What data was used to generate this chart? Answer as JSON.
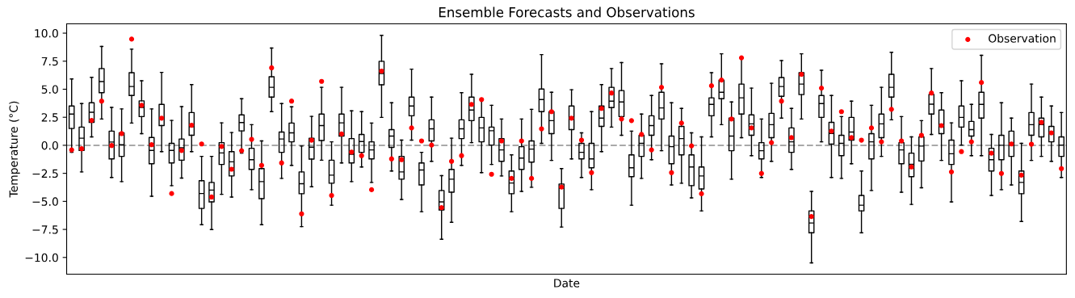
{
  "chart_data": {
    "type": "box",
    "title": "Ensemble Forecasts and Observations",
    "xlabel": "Date",
    "ylabel": "Temperature (°C)",
    "categories": [
      null,
      null,
      null,
      null,
      null,
      null,
      null,
      null,
      null,
      null,
      null,
      null,
      null,
      null,
      null,
      null,
      null,
      null,
      null,
      null,
      null,
      null,
      null,
      null,
      null,
      null,
      null,
      null,
      null,
      null,
      null,
      null,
      null,
      null,
      null,
      null,
      null,
      null,
      null,
      null,
      null,
      null,
      null,
      null,
      null,
      null,
      null,
      null,
      null,
      null,
      null,
      null,
      null,
      null,
      null,
      null,
      null,
      null,
      null,
      null,
      null,
      null,
      null,
      null,
      null,
      null,
      null,
      null,
      null,
      null,
      null,
      null,
      null,
      null,
      null,
      null,
      null,
      null,
      null,
      null,
      null,
      null,
      null,
      null,
      null,
      null,
      null,
      null,
      null,
      null,
      null,
      null,
      null,
      null,
      null,
      null,
      null,
      null,
      null,
      null
    ],
    "boxes": [
      {
        "low": -0.63,
        "q1": 1.5,
        "median": 2.78,
        "q3": 3.5,
        "high": 5.92
      },
      {
        "low": -2.37,
        "q1": -0.46,
        "median": 0.63,
        "q3": 1.62,
        "high": 3.72
      },
      {
        "low": 0.75,
        "q1": 2.05,
        "median": 2.95,
        "q3": 3.79,
        "high": 6.06
      },
      {
        "low": 2.34,
        "q1": 4.69,
        "median": 5.68,
        "q3": 6.84,
        "high": 8.82
      },
      {
        "low": -2.87,
        "q1": -1.21,
        "median": 0.29,
        "q3": 1.26,
        "high": 3.38
      },
      {
        "low": -3.24,
        "q1": -0.99,
        "median": 0.05,
        "q3": 1.11,
        "high": 3.24
      },
      {
        "low": 1.98,
        "q1": 4.44,
        "median": 5.24,
        "q3": 6.47,
        "high": 8.57
      },
      {
        "low": 1.04,
        "q1": 2.56,
        "median": 3.38,
        "q3": 3.96,
        "high": 5.75
      },
      {
        "low": -4.54,
        "q1": -1.64,
        "median": -0.46,
        "q3": 0.7,
        "high": 3.24
      },
      {
        "low": -0.56,
        "q1": 1.76,
        "median": 2.42,
        "q3": 3.65,
        "high": 6.5
      },
      {
        "low": -3.6,
        "q1": -1.57,
        "median": -0.46,
        "q3": 0.17,
        "high": 2.22
      },
      {
        "low": -2.92,
        "q1": -1.33,
        "median": -0.22,
        "q3": 0.56,
        "high": 3.45
      },
      {
        "low": -0.56,
        "q1": 0.89,
        "median": 1.67,
        "q3": 2.92,
        "high": 5.41
      },
      {
        "low": -7.08,
        "q1": -5.63,
        "median": -4.3,
        "q3": -3.16,
        "high": -0.99
      },
      {
        "low": -7.51,
        "q1": -5.05,
        "median": -3.99,
        "q3": -3.31,
        "high": -0.99
      },
      {
        "low": -4.37,
        "q1": -1.71,
        "median": -0.68,
        "q3": 0.24,
        "high": 2.0
      },
      {
        "low": -4.61,
        "q1": -2.73,
        "median": -1.47,
        "q3": -0.56,
        "high": 1.14
      },
      {
        "low": -0.7,
        "q1": 1.28,
        "median": 2.03,
        "q3": 2.71,
        "high": 4.15
      },
      {
        "low": -3.96,
        "q1": -2.15,
        "median": -1.28,
        "q3": -0.27,
        "high": 1.84
      },
      {
        "low": -7.08,
        "q1": -4.76,
        "median": -3.24,
        "q3": -2.08,
        "high": 0.39
      },
      {
        "low": 3.0,
        "q1": 4.3,
        "median": 5.17,
        "q3": 6.11,
        "high": 8.67
      },
      {
        "low": -2.95,
        "q1": -0.63,
        "median": 0.56,
        "q3": 1.18,
        "high": 3.72
      },
      {
        "low": -1.79,
        "q1": 0.31,
        "median": 1.11,
        "q3": 1.98,
        "high": 3.43
      },
      {
        "low": -7.25,
        "q1": -4.32,
        "median": -3.43,
        "q3": -2.37,
        "high": -0.07
      },
      {
        "low": -3.7,
        "q1": -1.23,
        "median": -0.17,
        "q3": 0.63,
        "high": 2.58
      },
      {
        "low": -1.33,
        "q1": 0.43,
        "median": 1.76,
        "q3": 2.78,
        "high": 5.17
      },
      {
        "low": -5.34,
        "q1": -3.38,
        "median": -2.66,
        "q3": -1.33,
        "high": 0.31
      },
      {
        "low": -1.57,
        "q1": 0.82,
        "median": 2.0,
        "q3": 2.78,
        "high": 5.17
      },
      {
        "low": -3.24,
        "q1": -1.57,
        "median": -0.8,
        "q3": 0.6,
        "high": 3.07
      },
      {
        "low": -1.93,
        "q1": -0.63,
        "median": 0.34,
        "q3": 0.97,
        "high": 3.0
      },
      {
        "low": -3.31,
        "q1": -1.21,
        "median": -0.41,
        "q3": 0.31,
        "high": 1.98
      },
      {
        "low": 2.49,
        "q1": 5.39,
        "median": 6.4,
        "q3": 7.49,
        "high": 9.81
      },
      {
        "low": -2.29,
        "q1": -0.19,
        "median": 0.82,
        "q3": 1.4,
        "high": 3.79
      },
      {
        "low": -4.83,
        "q1": -3.02,
        "median": -2.37,
        "q3": -0.99,
        "high": 0.46
      },
      {
        "low": 0.46,
        "q1": 2.63,
        "median": 3.5,
        "q3": 4.3,
        "high": 6.79
      },
      {
        "low": -5.92,
        "q1": -3.53,
        "median": -2.2,
        "q3": -1.57,
        "high": -0.63
      },
      {
        "low": -1.43,
        "q1": 0.39,
        "median": 1.47,
        "q3": 2.27,
        "high": 4.3
      },
      {
        "low": -8.38,
        "q1": -5.77,
        "median": -5.05,
        "q3": -4.03,
        "high": -2.71
      },
      {
        "low": -6.86,
        "q1": -4.18,
        "median": -3.02,
        "q3": -2.15,
        "high": 0.63
      },
      {
        "low": -1.79,
        "q1": 0.6,
        "median": 1.47,
        "q3": 2.27,
        "high": 4.69
      },
      {
        "low": 0.24,
        "q1": 2.2,
        "median": 3.14,
        "q3": 4.3,
        "high": 6.33
      },
      {
        "low": -2.44,
        "q1": 0.31,
        "median": 1.55,
        "q3": 2.49,
        "high": 4.08
      },
      {
        "low": -1.71,
        "q1": 0.02,
        "median": 1.3,
        "q3": 1.62,
        "high": 3.57
      },
      {
        "low": -2.73,
        "q1": -1.43,
        "median": -0.41,
        "q3": 0.6,
        "high": 2.34
      },
      {
        "low": -5.92,
        "q1": -4.32,
        "median": -3.36,
        "q3": -2.29,
        "high": -0.85
      },
      {
        "low": -4.11,
        "q1": -2.15,
        "median": -1.14,
        "q3": -0.12,
        "high": 2.34
      },
      {
        "low": -3.74,
        "q1": -1.5,
        "median": -0.34,
        "q3": 0.39,
        "high": 3.21
      },
      {
        "low": 0.17,
        "q1": 3.0,
        "median": 4.08,
        "q3": 5.02,
        "high": 8.09
      },
      {
        "low": -1.35,
        "q1": 1.04,
        "median": 2.2,
        "q3": 3.0,
        "high": 4.73
      },
      {
        "low": -7.29,
        "q1": -5.63,
        "median": -3.8,
        "q3": -3.45,
        "high": -2.08
      },
      {
        "low": -1.21,
        "q1": 1.4,
        "median": 2.42,
        "q3": 3.5,
        "high": 4.95
      },
      {
        "low": -2.87,
        "q1": -1.21,
        "median": -0.63,
        "q3": 0.17,
        "high": 1.11
      },
      {
        "low": -3.96,
        "q1": -2.0,
        "median": -1.21,
        "q3": 0.17,
        "high": 3.0
      },
      {
        "low": -0.56,
        "q1": 1.69,
        "median": 2.42,
        "q3": 3.5,
        "high": 5.41
      },
      {
        "low": 1.62,
        "q1": 3.36,
        "median": 3.94,
        "q3": 5.17,
        "high": 6.84
      },
      {
        "low": 0.89,
        "q1": 2.56,
        "median": 3.86,
        "q3": 4.88,
        "high": 7.37
      },
      {
        "low": -5.34,
        "q1": -2.8,
        "median": -2.0,
        "q3": -0.85,
        "high": 1.26
      },
      {
        "low": -2.95,
        "q1": -0.99,
        "median": 0.17,
        "q3": 0.89,
        "high": 2.78
      },
      {
        "low": -1.28,
        "q1": 0.89,
        "median": 1.76,
        "q3": 2.63,
        "high": 4.44
      },
      {
        "low": -0.48,
        "q1": 2.34,
        "median": 3.33,
        "q3": 4.73,
        "high": 7.27
      },
      {
        "low": -3.53,
        "q1": -1.64,
        "median": -0.12,
        "q3": 0.82,
        "high": 3.79
      },
      {
        "low": -3.38,
        "q1": -0.85,
        "median": 0.6,
        "q3": 1.69,
        "high": 3.29
      },
      {
        "low": -4.69,
        "q1": -3.6,
        "median": -1.93,
        "q3": -0.85,
        "high": 1.11
      },
      {
        "low": -5.85,
        "q1": -3.89,
        "median": -2.73,
        "q3": -1.93,
        "high": 0.75
      },
      {
        "low": 0.75,
        "q1": 2.63,
        "median": 3.65,
        "q3": 4.23,
        "high": 6.47
      },
      {
        "low": 1.84,
        "q1": 4.15,
        "median": 4.73,
        "q3": 5.82,
        "high": 8.16
      },
      {
        "low": -3.02,
        "q1": -0.48,
        "median": 0.82,
        "q3": 2.42,
        "high": 3.86
      },
      {
        "low": 0.68,
        "q1": 2.78,
        "median": 4.23,
        "q3": 5.46,
        "high": 7.8
      },
      {
        "low": -0.92,
        "q1": 0.89,
        "median": 1.91,
        "q3": 2.71,
        "high": 5.1
      },
      {
        "low": -2.87,
        "q1": -1.21,
        "median": -0.48,
        "q3": 0.24,
        "high": 2.34
      },
      {
        "low": -1.43,
        "q1": 0.68,
        "median": 1.84,
        "q3": 2.85,
        "high": 5.53
      },
      {
        "low": 2.42,
        "q1": 4.37,
        "median": 5.24,
        "q3": 6.04,
        "high": 7.56
      },
      {
        "low": -2.15,
        "q1": -0.63,
        "median": 0.31,
        "q3": 1.55,
        "high": 3.29
      },
      {
        "low": 2.34,
        "q1": 4.52,
        "median": 5.46,
        "q3": 6.47,
        "high": 8.16
      },
      {
        "low": -10.48,
        "q1": -7.8,
        "median": -6.93,
        "q3": -5.85,
        "high": -4.11
      },
      {
        "low": 0.31,
        "q1": 2.49,
        "median": 3.72,
        "q3": 4.44,
        "high": 6.69
      },
      {
        "low": -2.87,
        "q1": 0.1,
        "median": 1.06,
        "q3": 2.05,
        "high": 4.44
      },
      {
        "low": -2.95,
        "q1": -0.92,
        "median": 0.17,
        "q3": 0.89,
        "high": 2.56
      },
      {
        "low": -1.64,
        "q1": 0.46,
        "median": 1.18,
        "q3": 2.49,
        "high": 3.94
      },
      {
        "low": -7.8,
        "q1": -5.85,
        "median": -5.34,
        "q3": -4.47,
        "high": -2.29
      },
      {
        "low": -4.03,
        "q1": -1.21,
        "median": 0.31,
        "q3": 1.04,
        "high": 3.57
      },
      {
        "low": -0.99,
        "q1": 0.68,
        "median": 1.91,
        "q3": 2.78,
        "high": 5.17
      },
      {
        "low": 2.27,
        "q1": 4.3,
        "median": 5.17,
        "q3": 6.33,
        "high": 8.29
      },
      {
        "low": -4.18,
        "q1": -1.64,
        "median": -0.41,
        "q3": 0.24,
        "high": 2.56
      },
      {
        "low": -5.27,
        "q1": -2.8,
        "median": -1.69,
        "q3": -0.7,
        "high": 0.75
      },
      {
        "low": -3.79,
        "q1": -1.4,
        "median": -0.07,
        "q3": 0.75,
        "high": 2.2
      },
      {
        "low": 0.97,
        "q1": 2.78,
        "median": 3.67,
        "q3": 4.54,
        "high": 6.84
      },
      {
        "low": -1.35,
        "q1": 1.04,
        "median": 1.86,
        "q3": 3.14,
        "high": 4.69
      },
      {
        "low": -5.05,
        "q1": -1.71,
        "median": -0.75,
        "q3": 0.46,
        "high": 2.0
      },
      {
        "low": 0.02,
        "q1": 1.62,
        "median": 2.49,
        "q3": 3.5,
        "high": 5.75
      },
      {
        "low": -0.92,
        "q1": 0.82,
        "median": 1.4,
        "q3": 2.13,
        "high": 3.65
      },
      {
        "low": -0.92,
        "q1": 2.42,
        "median": 3.65,
        "q3": 4.73,
        "high": 8.02
      },
      {
        "low": -4.47,
        "q1": -2.29,
        "median": -1.28,
        "q3": -0.27,
        "high": 0.97
      },
      {
        "low": -3.96,
        "q1": -1.28,
        "median": 0.0,
        "q3": 0.89,
        "high": 3.79
      },
      {
        "low": -3.53,
        "q1": -0.99,
        "median": 0.17,
        "q3": 1.26,
        "high": 2.42
      },
      {
        "low": -6.79,
        "q1": -4.32,
        "median": -3.31,
        "q3": -2.29,
        "high": 0.17
      },
      {
        "low": -1.35,
        "q1": 0.89,
        "median": 1.84,
        "q3": 2.92,
        "high": 5.46
      },
      {
        "low": -0.99,
        "q1": 0.75,
        "median": 1.84,
        "q3": 2.42,
        "high": 4.3
      },
      {
        "low": -1.43,
        "q1": 0.31,
        "median": 1.11,
        "q3": 1.69,
        "high": 3.5
      },
      {
        "low": -2.87,
        "q1": -0.99,
        "median": 0.02,
        "q3": 0.75,
        "high": 2.92
      }
    ],
    "series": [
      {
        "type": "scatter",
        "name": "Observation",
        "color": "#ff0000",
        "values": [
          -0.41,
          -0.31,
          2.22,
          3.94,
          -0.02,
          1.04,
          9.47,
          3.57,
          0.05,
          2.42,
          -4.3,
          -0.46,
          1.79,
          0.12,
          -4.61,
          -0.1,
          -2.13,
          -0.48,
          0.53,
          -1.79,
          6.91,
          -1.57,
          3.94,
          -6.11,
          0.46,
          5.7,
          -4.47,
          1.01,
          -0.6,
          -0.92,
          -3.96,
          6.62,
          -1.21,
          -1.28,
          1.55,
          0.39,
          0.02,
          -5.56,
          -1.43,
          -0.92,
          3.65,
          4.08,
          -2.58,
          0.39,
          -2.95,
          0.39,
          -2.95,
          1.47,
          3.0,
          -3.72,
          2.42,
          0.46,
          -2.44,
          3.29,
          4.66,
          2.34,
          2.2,
          0.97,
          -0.41,
          5.17,
          -2.44,
          1.98,
          -0.05,
          -4.32,
          5.31,
          5.82,
          2.34,
          7.8,
          1.55,
          -2.51,
          0.24,
          3.94,
          0.68,
          6.33,
          -6.35,
          5.1,
          1.26,
          3.0,
          0.68,
          0.46,
          1.55,
          0.31,
          3.21,
          0.39,
          -1.93,
          0.89,
          4.66,
          1.76,
          -2.37,
          -0.56,
          0.31,
          5.6,
          -0.7,
          -2.51,
          0.12,
          -2.66,
          0.1,
          2.05,
          1.11,
          -2.08
        ]
      }
    ],
    "ylim": [
      -11.49,
      10.83
    ],
    "yticks": [
      {
        "value": -10,
        "label": "−10.0"
      },
      {
        "value": -7.5,
        "label": "−7.5"
      },
      {
        "value": -5,
        "label": "−5.0"
      },
      {
        "value": -2.5,
        "label": "−2.5"
      },
      {
        "value": 0,
        "label": "0.0"
      },
      {
        "value": 2.5,
        "label": "2.5"
      },
      {
        "value": 5,
        "label": "5.0"
      },
      {
        "value": 7.5,
        "label": "7.5"
      },
      {
        "value": 10,
        "label": "10.0"
      }
    ],
    "ref_lines": [
      {
        "axis": "y",
        "value": 0,
        "color": "#a9a9a9",
        "line_style": "dashed"
      }
    ],
    "legend": "top right",
    "grid": false,
    "tick_labels": "y",
    "marker": "circle"
  }
}
